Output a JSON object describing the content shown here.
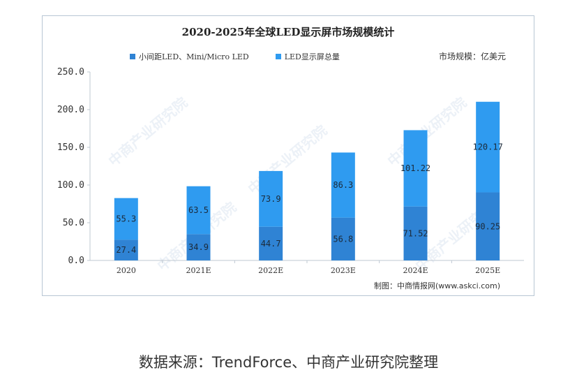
{
  "caption": "数据来源：TrendForce、中商产业研究院整理",
  "watermark": "中商产业研究院",
  "colors": {
    "base_series": "#2f83d4",
    "top_series": "#2f9bf0",
    "axis": "#bfc8d2",
    "text": "#333333"
  },
  "chart_data": {
    "type": "bar",
    "stacked": true,
    "title": "2020-2025年全球LED显示屏市场规模统计",
    "unit_label": "市场规模：亿美元",
    "source_credit": "制图：中商情报网(www.askci.com)",
    "categories": [
      "2020",
      "2021E",
      "2022E",
      "2023E",
      "2024E",
      "2025E"
    ],
    "series": [
      {
        "name": "小间距LED、Mini/Micro LED",
        "values": [
          27.4,
          34.9,
          44.7,
          56.8,
          71.52,
          90.25
        ],
        "labels": [
          "27.4",
          "34.9",
          "44.7",
          "56.8",
          "71.52",
          "90.25"
        ]
      },
      {
        "name": "LED显示屏总量",
        "values": [
          55.3,
          63.5,
          73.9,
          86.3,
          101.22,
          120.17
        ],
        "labels": [
          "55.3",
          "63.5",
          "73.9",
          "86.3",
          "101.22",
          "120.17"
        ]
      }
    ],
    "yticks": [
      "250.0",
      "200.0",
      "150.0",
      "100.0",
      "50.0",
      "0.0"
    ],
    "ylim": [
      0,
      250
    ],
    "grid": false,
    "legend_position": "top"
  }
}
